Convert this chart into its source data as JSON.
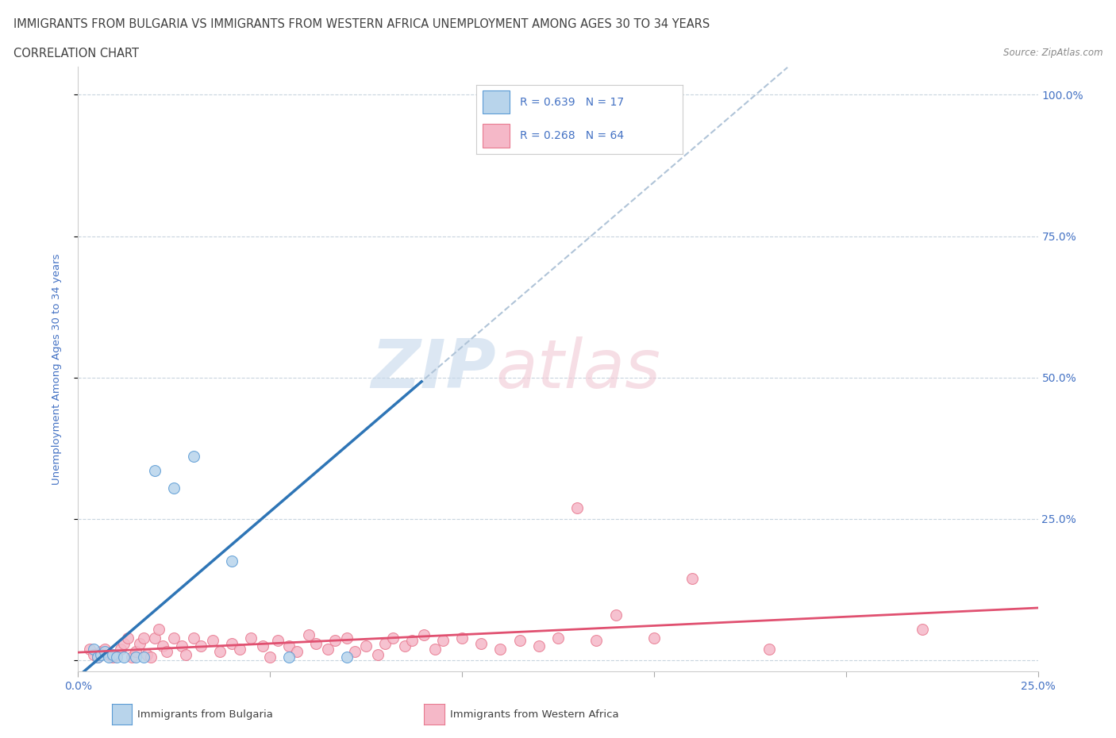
{
  "title_line1": "IMMIGRANTS FROM BULGARIA VS IMMIGRANTS FROM WESTERN AFRICA UNEMPLOYMENT AMONG AGES 30 TO 34 YEARS",
  "title_line2": "CORRELATION CHART",
  "source": "Source: ZipAtlas.com",
  "ylabel": "Unemployment Among Ages 30 to 34 years",
  "y_tick_labels": [
    "",
    "25.0%",
    "50.0%",
    "75.0%",
    "100.0%"
  ],
  "y_ticks": [
    0.0,
    0.25,
    0.5,
    0.75,
    1.0
  ],
  "xlim": [
    0.0,
    0.25
  ],
  "ylim": [
    -0.02,
    1.05
  ],
  "watermark_zip": "ZIP",
  "watermark_atlas": "atlas",
  "legend_R_bulgaria": "R = 0.639",
  "legend_N_bulgaria": "N = 17",
  "legend_R_western_africa": "R = 0.268",
  "legend_N_western_africa": "N = 64",
  "bulgaria_fill_color": "#b8d4eb",
  "western_africa_fill_color": "#f5b8c8",
  "bulgaria_edge_color": "#5b9bd5",
  "western_africa_edge_color": "#e87a90",
  "bulgaria_line_color": "#2e75b6",
  "western_africa_line_color": "#e05070",
  "dashed_line_color": "#b0c4d8",
  "bulgaria_scatter_x": [
    0.004,
    0.005,
    0.006,
    0.007,
    0.008,
    0.009,
    0.01,
    0.012,
    0.015,
    0.017,
    0.02,
    0.025,
    0.03,
    0.04,
    0.055,
    0.07,
    0.14
  ],
  "bulgaria_scatter_y": [
    0.02,
    0.005,
    0.01,
    0.015,
    0.005,
    0.01,
    0.005,
    0.005,
    0.005,
    0.005,
    0.335,
    0.305,
    0.36,
    0.175,
    0.005,
    0.005,
    1.0
  ],
  "western_africa_scatter_x": [
    0.003,
    0.004,
    0.005,
    0.006,
    0.007,
    0.008,
    0.009,
    0.01,
    0.011,
    0.012,
    0.013,
    0.014,
    0.015,
    0.016,
    0.017,
    0.018,
    0.019,
    0.02,
    0.021,
    0.022,
    0.023,
    0.025,
    0.027,
    0.028,
    0.03,
    0.032,
    0.035,
    0.037,
    0.04,
    0.042,
    0.045,
    0.048,
    0.05,
    0.052,
    0.055,
    0.057,
    0.06,
    0.062,
    0.065,
    0.067,
    0.07,
    0.072,
    0.075,
    0.078,
    0.08,
    0.082,
    0.085,
    0.087,
    0.09,
    0.093,
    0.095,
    0.1,
    0.105,
    0.11,
    0.115,
    0.12,
    0.125,
    0.13,
    0.135,
    0.14,
    0.15,
    0.16,
    0.18,
    0.22
  ],
  "western_africa_scatter_y": [
    0.02,
    0.01,
    0.005,
    0.015,
    0.02,
    0.01,
    0.005,
    0.01,
    0.02,
    0.03,
    0.04,
    0.005,
    0.015,
    0.03,
    0.04,
    0.01,
    0.005,
    0.04,
    0.055,
    0.025,
    0.015,
    0.04,
    0.025,
    0.01,
    0.04,
    0.025,
    0.035,
    0.015,
    0.03,
    0.02,
    0.04,
    0.025,
    0.005,
    0.035,
    0.025,
    0.015,
    0.045,
    0.03,
    0.02,
    0.035,
    0.04,
    0.015,
    0.025,
    0.01,
    0.03,
    0.04,
    0.025,
    0.035,
    0.045,
    0.02,
    0.035,
    0.04,
    0.03,
    0.02,
    0.035,
    0.025,
    0.04,
    0.27,
    0.035,
    0.08,
    0.04,
    0.145,
    0.02,
    0.055
  ],
  "background_color": "#ffffff",
  "grid_color": "#c8d4de",
  "title_color": "#404040",
  "axis_label_color": "#4472c4",
  "legend_text_color": "#4472c4",
  "scatter_size": 100,
  "marker_alpha": 0.85
}
